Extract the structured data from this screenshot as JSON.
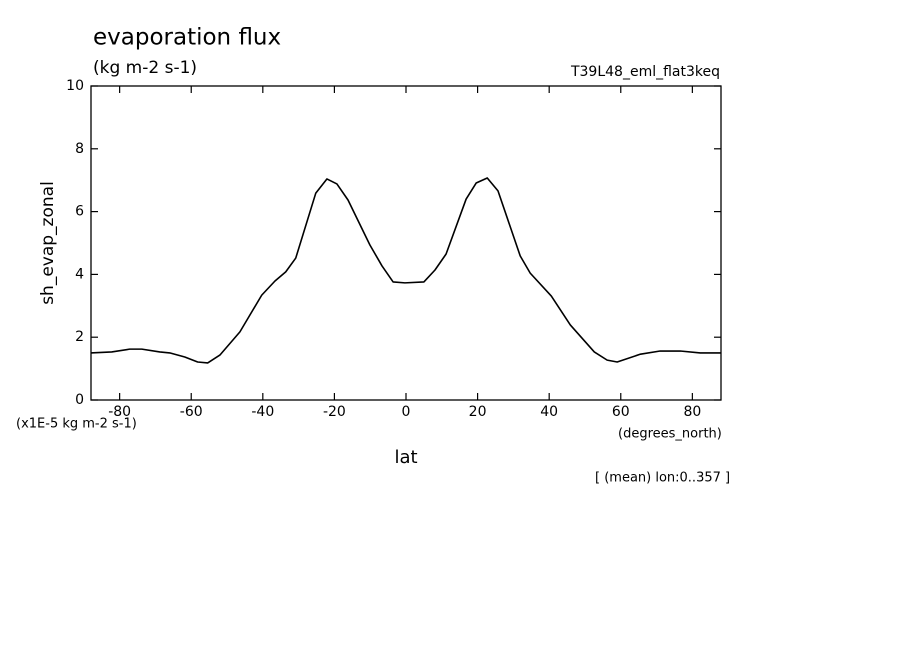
{
  "chart_data": {
    "type": "line",
    "title": "evaporation flux",
    "subtitle": "(kg m-2 s-1)",
    "run_label": "T39L48_eml_flat3keq",
    "y_label": "sh_evap_zonal",
    "y_units": "(x1E-5 kg m-2 s-1)",
    "x_label": "lat",
    "x_units": "(degrees_north)",
    "note": "[ (mean) lon:0..357 ]",
    "xlim": [
      -88,
      88
    ],
    "ylim": [
      0,
      10
    ],
    "xticks": [
      -80,
      -60,
      -40,
      -20,
      0,
      20,
      40,
      60,
      80
    ],
    "yticks": [
      0,
      2,
      4,
      6,
      8,
      10
    ],
    "grid": false,
    "series": [
      {
        "name": "sh_evap_zonal",
        "color": "#000000",
        "x": [
          -88.1,
          -82.2,
          -77.2,
          -73.8,
          -68.8,
          -66,
          -61.8,
          -58.2,
          -55.4,
          -52,
          -46.4,
          -40.3,
          -36.6,
          -33.6,
          -30.8,
          -25.2,
          -22.1,
          -19.3,
          -16.2,
          -10.1,
          -6.7,
          -3.6,
          -0.3,
          5,
          8.1,
          11.2,
          16.8,
          19.6,
          22.7,
          25.7,
          31.9,
          34.7,
          40.6,
          45.9,
          52.6,
          56.2,
          59,
          65.5,
          71,
          76.6,
          82.2,
          88.1
        ],
        "values": [
          1.5,
          1.53,
          1.62,
          1.62,
          1.53,
          1.5,
          1.37,
          1.21,
          1.18,
          1.43,
          2.17,
          3.34,
          3.79,
          4.08,
          4.52,
          6.59,
          7.04,
          6.88,
          6.37,
          4.94,
          4.27,
          3.76,
          3.73,
          3.76,
          4.14,
          4.65,
          6.4,
          6.91,
          7.07,
          6.66,
          4.59,
          4.04,
          3.31,
          2.39,
          1.53,
          1.27,
          1.21,
          1.46,
          1.56,
          1.56,
          1.5,
          1.5
        ]
      }
    ]
  }
}
